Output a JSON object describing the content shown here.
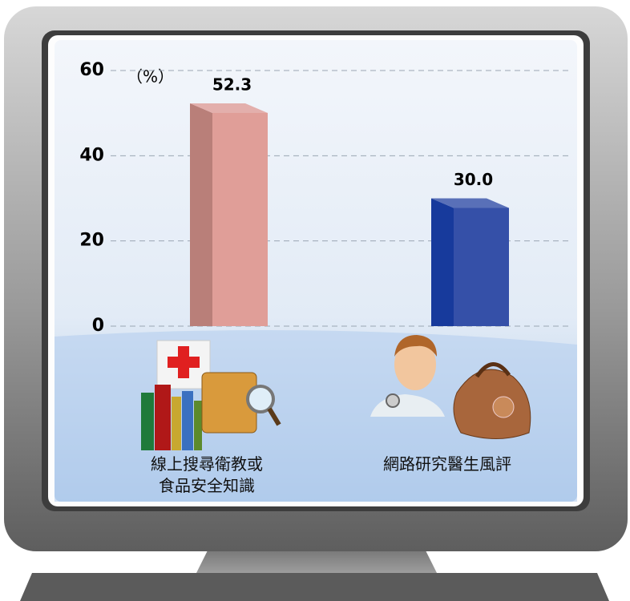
{
  "chart_data": {
    "type": "bar3d",
    "y_unit_label": "（%）",
    "categories": [
      "線上搜尋衛教或\n食品安全知識",
      "網路研究醫生風評"
    ],
    "values": [
      52.3,
      30.0
    ],
    "value_labels": [
      "52.3",
      "30.0"
    ],
    "colors": [
      "#e09e98",
      "#3550a8"
    ],
    "side_colors": [
      "#b97f79",
      "#173a9c"
    ],
    "ylim": [
      0,
      60
    ],
    "yticks": [
      0,
      20,
      40,
      60
    ],
    "grid": true
  }
}
